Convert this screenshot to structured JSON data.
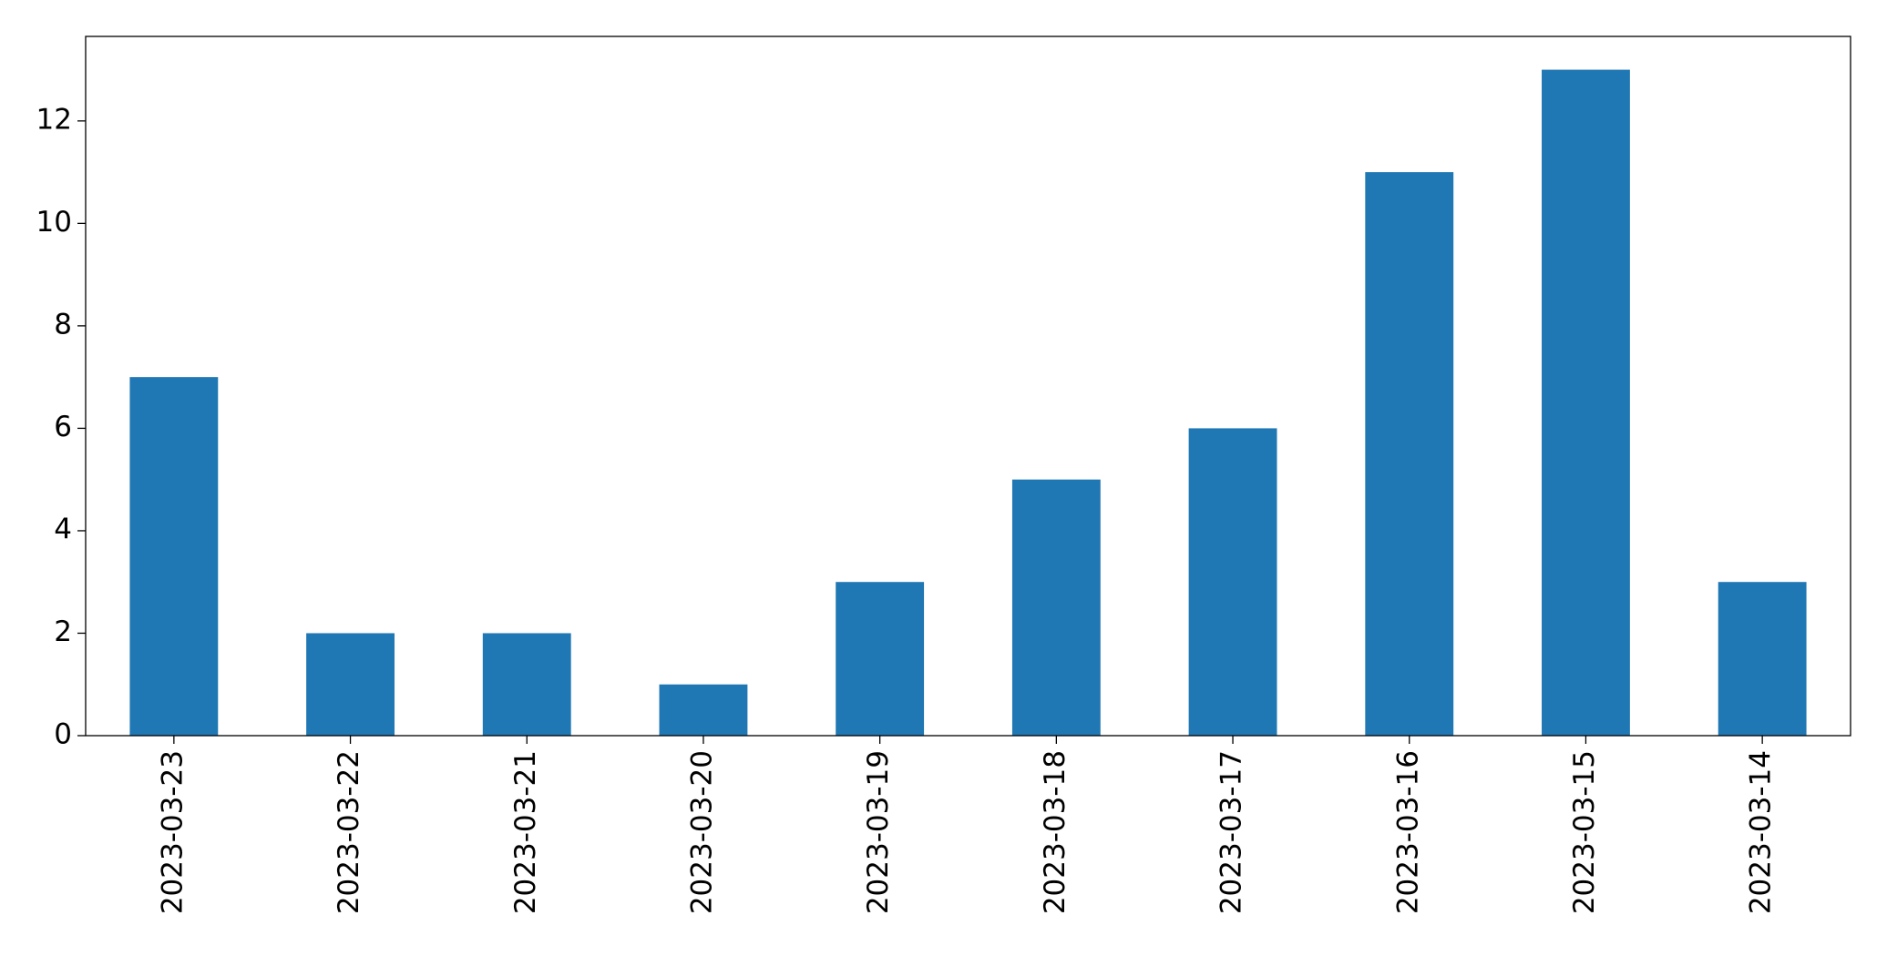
{
  "chart_data": {
    "type": "bar",
    "categories": [
      "2023-03-23",
      "2023-03-22",
      "2023-03-21",
      "2023-03-20",
      "2023-03-19",
      "2023-03-18",
      "2023-03-17",
      "2023-03-16",
      "2023-03-15",
      "2023-03-14"
    ],
    "values": [
      7,
      2,
      2,
      1,
      3,
      5,
      6,
      11,
      13,
      3
    ],
    "color": "#1f77b4",
    "ylim": [
      0,
      13.65
    ],
    "yticks": [
      0,
      2,
      4,
      6,
      8,
      10,
      12
    ],
    "grid": false
  }
}
